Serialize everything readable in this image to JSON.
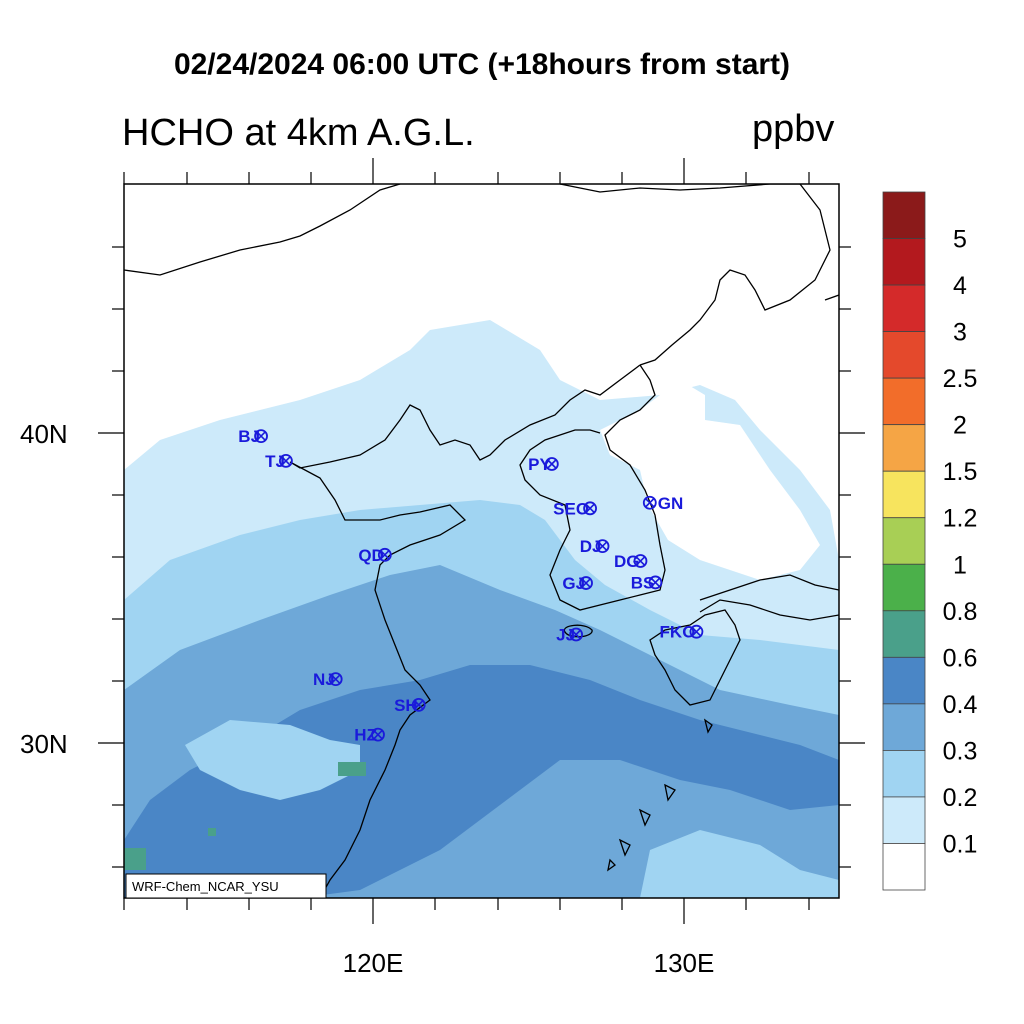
{
  "header": {
    "title": "02/24/2024 06:00 UTC (+18hours from start)",
    "subtitle": "HCHO at 4km A.G.L.",
    "units": "ppbv"
  },
  "axes": {
    "lat_labels": [
      "40N",
      "30N"
    ],
    "lon_labels": [
      "120E",
      "130E"
    ]
  },
  "colorbar": {
    "labels": [
      "5",
      "4",
      "3",
      "2.5",
      "2",
      "1.5",
      "1.2",
      "1",
      "0.8",
      "0.6",
      "0.4",
      "0.3",
      "0.2",
      "0.1"
    ],
    "colors": [
      "#8b1a1a",
      "#b3191e",
      "#d42a2a",
      "#e4492c",
      "#f26d2a",
      "#f5a545",
      "#f7e45e",
      "#a8cf55",
      "#4bb04a",
      "#4aa08a",
      "#4a86c6",
      "#6ea8d8",
      "#a0d4f2",
      "#cdeafa",
      "#ffffff"
    ]
  },
  "cities": [
    {
      "code": "BJ",
      "lon": 116.4,
      "lat": 39.9
    },
    {
      "code": "TJ",
      "lon": 117.2,
      "lat": 39.1
    },
    {
      "code": "PY",
      "lon": 125.75,
      "lat": 39.0
    },
    {
      "code": "GN",
      "lon": 128.9,
      "lat": 37.75
    },
    {
      "code": "SEO",
      "lon": 126.98,
      "lat": 37.57
    },
    {
      "code": "DJ",
      "lon": 127.38,
      "lat": 36.35
    },
    {
      "code": "DG",
      "lon": 128.6,
      "lat": 35.87
    },
    {
      "code": "QD",
      "lon": 120.38,
      "lat": 36.07
    },
    {
      "code": "GJ",
      "lon": 126.85,
      "lat": 35.16
    },
    {
      "code": "BS",
      "lon": 129.08,
      "lat": 35.18
    },
    {
      "code": "FKO",
      "lon": 130.4,
      "lat": 33.59
    },
    {
      "code": "JJ",
      "lon": 126.53,
      "lat": 33.5
    },
    {
      "code": "NJ",
      "lon": 118.8,
      "lat": 32.06
    },
    {
      "code": "SH",
      "lon": 121.47,
      "lat": 31.23
    },
    {
      "code": "HZ",
      "lon": 120.16,
      "lat": 30.27
    }
  ],
  "watermark": "WRF-Chem_NCAR_YSU"
}
